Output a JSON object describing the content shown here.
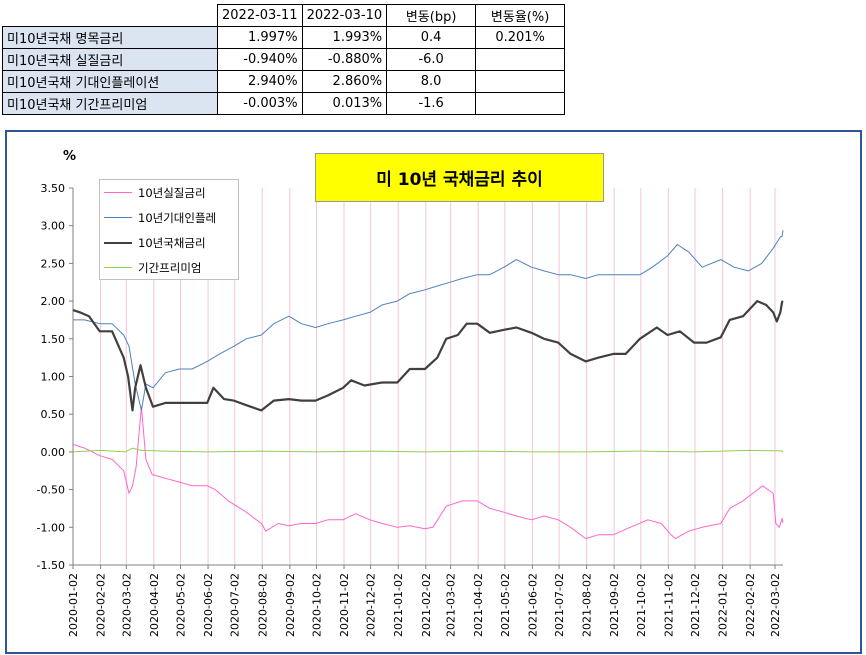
{
  "table": {
    "headers": [
      "2022-03-11",
      "2022-03-10",
      "변동(bp)",
      "변동율(%)"
    ],
    "rows": [
      {
        "label": "미10년국채 명목금리",
        "v1": "1.997%",
        "v2": "1.993%",
        "bp": "0.4",
        "pct": "0.201%"
      },
      {
        "label": "미10년국채 실질금리",
        "v1": "-0.940%",
        "v2": "-0.880%",
        "bp": "-6.0",
        "pct": ""
      },
      {
        "label": "미10년국채 기대인플레이션",
        "v1": "2.940%",
        "v2": "2.860%",
        "bp": "8.0",
        "pct": ""
      },
      {
        "label": "미10년국채 기간프리미엄",
        "v1": "-0.003%",
        "v2": "0.013%",
        "bp": "-1.6",
        "pct": ""
      }
    ]
  },
  "chart_data": {
    "type": "line",
    "title": "미 10년 국채금리 추이",
    "ylabel": "%",
    "xlabel": "",
    "ylim": [
      -1.5,
      3.5
    ],
    "ytick_step": 0.5,
    "y_ticks": [
      "3.50",
      "3.00",
      "2.50",
      "2.00",
      "1.50",
      "1.00",
      "0.50",
      "0.00",
      "-0.50",
      "-1.00",
      "-1.50"
    ],
    "x_ticks": [
      "2020-01-02",
      "2020-02-02",
      "2020-03-02",
      "2020-04-02",
      "2020-05-02",
      "2020-06-02",
      "2020-07-02",
      "2020-08-02",
      "2020-09-02",
      "2020-10-02",
      "2020-11-02",
      "2020-12-02",
      "2021-01-02",
      "2021-02-02",
      "2021-03-02",
      "2021-04-02",
      "2021-05-02",
      "2021-06-02",
      "2021-07-02",
      "2021-08-02",
      "2021-09-02",
      "2021-10-02",
      "2021-11-02",
      "2021-12-02",
      "2022-01-02",
      "2022-02-02",
      "2022-03-02"
    ],
    "x_range": [
      "2020-01-02",
      "2022-03-11"
    ],
    "grid": "vertical",
    "legend_position": "top-left",
    "series": [
      {
        "name": "10년실질금리",
        "color": "#ff66cc",
        "width": 1,
        "points": [
          [
            "2020-01-02",
            0.1
          ],
          [
            "2020-01-15",
            0.05
          ],
          [
            "2020-02-01",
            -0.05
          ],
          [
            "2020-02-15",
            -0.1
          ],
          [
            "2020-02-28",
            -0.25
          ],
          [
            "2020-03-05",
            -0.55
          ],
          [
            "2020-03-09",
            -0.45
          ],
          [
            "2020-03-13",
            -0.2
          ],
          [
            "2020-03-19",
            0.6
          ],
          [
            "2020-03-24",
            -0.1
          ],
          [
            "2020-03-31",
            -0.3
          ],
          [
            "2020-04-15",
            -0.35
          ],
          [
            "2020-05-01",
            -0.4
          ],
          [
            "2020-05-15",
            -0.45
          ],
          [
            "2020-06-01",
            -0.45
          ],
          [
            "2020-06-10",
            -0.5
          ],
          [
            "2020-06-25",
            -0.65
          ],
          [
            "2020-07-15",
            -0.8
          ],
          [
            "2020-08-01",
            -0.95
          ],
          [
            "2020-08-06",
            -1.05
          ],
          [
            "2020-08-20",
            -0.95
          ],
          [
            "2020-09-01",
            -0.98
          ],
          [
            "2020-09-15",
            -0.95
          ],
          [
            "2020-10-01",
            -0.95
          ],
          [
            "2020-10-15",
            -0.9
          ],
          [
            "2020-11-01",
            -0.9
          ],
          [
            "2020-11-15",
            -0.82
          ],
          [
            "2020-12-01",
            -0.9
          ],
          [
            "2020-12-15",
            -0.95
          ],
          [
            "2021-01-01",
            -1.0
          ],
          [
            "2021-01-15",
            -0.98
          ],
          [
            "2021-02-01",
            -1.02
          ],
          [
            "2021-02-10",
            -1.0
          ],
          [
            "2021-02-25",
            -0.72
          ],
          [
            "2021-03-15",
            -0.65
          ],
          [
            "2021-04-01",
            -0.65
          ],
          [
            "2021-04-15",
            -0.75
          ],
          [
            "2021-05-01",
            -0.8
          ],
          [
            "2021-05-15",
            -0.85
          ],
          [
            "2021-06-01",
            -0.9
          ],
          [
            "2021-06-15",
            -0.85
          ],
          [
            "2021-07-01",
            -0.9
          ],
          [
            "2021-07-15",
            -1.0
          ],
          [
            "2021-08-01",
            -1.15
          ],
          [
            "2021-08-15",
            -1.1
          ],
          [
            "2021-09-01",
            -1.1
          ],
          [
            "2021-09-20",
            -1.0
          ],
          [
            "2021-10-10",
            -0.9
          ],
          [
            "2021-10-25",
            -0.95
          ],
          [
            "2021-11-05",
            -1.1
          ],
          [
            "2021-11-10",
            -1.15
          ],
          [
            "2021-11-25",
            -1.05
          ],
          [
            "2021-12-10",
            -1.0
          ],
          [
            "2021-12-31",
            -0.95
          ],
          [
            "2022-01-10",
            -0.75
          ],
          [
            "2022-01-25",
            -0.65
          ],
          [
            "2022-02-05",
            -0.55
          ],
          [
            "2022-02-16",
            -0.45
          ],
          [
            "2022-02-28",
            -0.55
          ],
          [
            "2022-03-03",
            -0.95
          ],
          [
            "2022-03-07",
            -1.0
          ],
          [
            "2022-03-10",
            -0.88
          ],
          [
            "2022-03-11",
            -0.94
          ]
        ]
      },
      {
        "name": "10년기대인플레",
        "color": "#4f81bd",
        "width": 1,
        "points": [
          [
            "2020-01-02",
            1.75
          ],
          [
            "2020-01-15",
            1.75
          ],
          [
            "2020-02-01",
            1.7
          ],
          [
            "2020-02-15",
            1.7
          ],
          [
            "2020-02-28",
            1.55
          ],
          [
            "2020-03-05",
            1.4
          ],
          [
            "2020-03-12",
            0.9
          ],
          [
            "2020-03-19",
            0.55
          ],
          [
            "2020-03-24",
            0.9
          ],
          [
            "2020-04-01",
            0.85
          ],
          [
            "2020-04-15",
            1.05
          ],
          [
            "2020-05-01",
            1.1
          ],
          [
            "2020-05-15",
            1.1
          ],
          [
            "2020-06-01",
            1.2
          ],
          [
            "2020-06-15",
            1.3
          ],
          [
            "2020-07-01",
            1.4
          ],
          [
            "2020-07-15",
            1.5
          ],
          [
            "2020-08-01",
            1.55
          ],
          [
            "2020-08-15",
            1.7
          ],
          [
            "2020-09-01",
            1.8
          ],
          [
            "2020-09-15",
            1.7
          ],
          [
            "2020-10-01",
            1.65
          ],
          [
            "2020-10-15",
            1.7
          ],
          [
            "2020-11-01",
            1.75
          ],
          [
            "2020-11-15",
            1.8
          ],
          [
            "2020-12-01",
            1.85
          ],
          [
            "2020-12-15",
            1.95
          ],
          [
            "2021-01-01",
            2.0
          ],
          [
            "2021-01-15",
            2.1
          ],
          [
            "2021-02-01",
            2.15
          ],
          [
            "2021-02-15",
            2.2
          ],
          [
            "2021-03-01",
            2.25
          ],
          [
            "2021-03-15",
            2.3
          ],
          [
            "2021-04-01",
            2.35
          ],
          [
            "2021-04-15",
            2.35
          ],
          [
            "2021-05-01",
            2.45
          ],
          [
            "2021-05-15",
            2.55
          ],
          [
            "2021-06-01",
            2.45
          ],
          [
            "2021-06-15",
            2.4
          ],
          [
            "2021-07-01",
            2.35
          ],
          [
            "2021-07-15",
            2.35
          ],
          [
            "2021-08-01",
            2.3
          ],
          [
            "2021-08-15",
            2.35
          ],
          [
            "2021-09-01",
            2.35
          ],
          [
            "2021-09-15",
            2.35
          ],
          [
            "2021-10-01",
            2.35
          ],
          [
            "2021-10-15",
            2.45
          ],
          [
            "2021-11-01",
            2.6
          ],
          [
            "2021-11-12",
            2.75
          ],
          [
            "2021-11-25",
            2.65
          ],
          [
            "2021-12-10",
            2.45
          ],
          [
            "2021-12-31",
            2.55
          ],
          [
            "2022-01-15",
            2.45
          ],
          [
            "2022-01-31",
            2.4
          ],
          [
            "2022-02-15",
            2.5
          ],
          [
            "2022-02-28",
            2.7
          ],
          [
            "2022-03-08",
            2.85
          ],
          [
            "2022-03-10",
            2.86
          ],
          [
            "2022-03-11",
            2.94
          ]
        ]
      },
      {
        "name": "10년국채금리",
        "color": "#404040",
        "width": 2.2,
        "points": [
          [
            "2020-01-02",
            1.88
          ],
          [
            "2020-01-10",
            1.85
          ],
          [
            "2020-01-20",
            1.8
          ],
          [
            "2020-02-01",
            1.6
          ],
          [
            "2020-02-15",
            1.6
          ],
          [
            "2020-02-28",
            1.25
          ],
          [
            "2020-03-04",
            1.0
          ],
          [
            "2020-03-09",
            0.55
          ],
          [
            "2020-03-12",
            0.85
          ],
          [
            "2020-03-18",
            1.15
          ],
          [
            "2020-03-24",
            0.85
          ],
          [
            "2020-04-01",
            0.6
          ],
          [
            "2020-04-15",
            0.65
          ],
          [
            "2020-05-01",
            0.65
          ],
          [
            "2020-05-15",
            0.65
          ],
          [
            "2020-06-01",
            0.65
          ],
          [
            "2020-06-08",
            0.85
          ],
          [
            "2020-06-20",
            0.7
          ],
          [
            "2020-07-01",
            0.68
          ],
          [
            "2020-07-15",
            0.62
          ],
          [
            "2020-08-01",
            0.55
          ],
          [
            "2020-08-15",
            0.68
          ],
          [
            "2020-09-01",
            0.7
          ],
          [
            "2020-09-15",
            0.68
          ],
          [
            "2020-10-01",
            0.68
          ],
          [
            "2020-10-15",
            0.75
          ],
          [
            "2020-11-01",
            0.85
          ],
          [
            "2020-11-10",
            0.95
          ],
          [
            "2020-11-25",
            0.88
          ],
          [
            "2020-12-15",
            0.92
          ],
          [
            "2021-01-01",
            0.92
          ],
          [
            "2021-01-15",
            1.1
          ],
          [
            "2021-02-01",
            1.1
          ],
          [
            "2021-02-15",
            1.25
          ],
          [
            "2021-02-25",
            1.5
          ],
          [
            "2021-03-10",
            1.55
          ],
          [
            "2021-03-20",
            1.7
          ],
          [
            "2021-04-01",
            1.7
          ],
          [
            "2021-04-15",
            1.58
          ],
          [
            "2021-05-01",
            1.62
          ],
          [
            "2021-05-15",
            1.65
          ],
          [
            "2021-06-01",
            1.58
          ],
          [
            "2021-06-15",
            1.5
          ],
          [
            "2021-07-01",
            1.45
          ],
          [
            "2021-07-15",
            1.3
          ],
          [
            "2021-08-01",
            1.2
          ],
          [
            "2021-08-15",
            1.25
          ],
          [
            "2021-09-01",
            1.3
          ],
          [
            "2021-09-15",
            1.3
          ],
          [
            "2021-10-01",
            1.5
          ],
          [
            "2021-10-20",
            1.65
          ],
          [
            "2021-11-01",
            1.55
          ],
          [
            "2021-11-15",
            1.6
          ],
          [
            "2021-12-01",
            1.45
          ],
          [
            "2021-12-15",
            1.45
          ],
          [
            "2021-12-31",
            1.52
          ],
          [
            "2022-01-10",
            1.75
          ],
          [
            "2022-01-25",
            1.8
          ],
          [
            "2022-02-10",
            2.0
          ],
          [
            "2022-02-20",
            1.95
          ],
          [
            "2022-02-28",
            1.85
          ],
          [
            "2022-03-04",
            1.73
          ],
          [
            "2022-03-08",
            1.85
          ],
          [
            "2022-03-10",
            1.99
          ],
          [
            "2022-03-11",
            2.0
          ]
        ]
      },
      {
        "name": "기간프리미엄",
        "color": "#92d050",
        "width": 1,
        "points": [
          [
            "2020-01-02",
            0.0
          ],
          [
            "2020-02-01",
            0.02
          ],
          [
            "2020-03-01",
            0.0
          ],
          [
            "2020-03-09",
            0.05
          ],
          [
            "2020-03-19",
            0.02
          ],
          [
            "2020-04-15",
            0.01
          ],
          [
            "2020-06-01",
            0.0
          ],
          [
            "2020-08-01",
            0.01
          ],
          [
            "2020-10-01",
            0.0
          ],
          [
            "2020-12-01",
            0.01
          ],
          [
            "2021-02-01",
            0.0
          ],
          [
            "2021-04-01",
            0.01
          ],
          [
            "2021-06-01",
            0.0
          ],
          [
            "2021-08-01",
            0.0
          ],
          [
            "2021-10-01",
            0.01
          ],
          [
            "2021-12-01",
            0.0
          ],
          [
            "2022-02-01",
            0.02
          ],
          [
            "2022-03-10",
            0.013
          ],
          [
            "2022-03-11",
            -0.003
          ]
        ]
      }
    ]
  }
}
